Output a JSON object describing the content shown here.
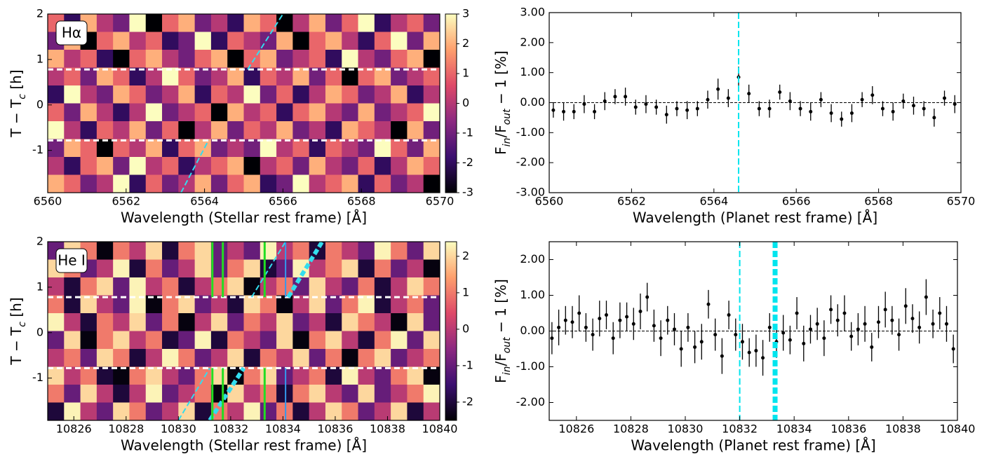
{
  "chart_data": [
    {
      "type": "heatmap",
      "label": "Hα",
      "xlabel": "Wavelength (Stellar rest frame) [Å]",
      "ylabel": [
        "T − T",
        "c",
        " [h]"
      ],
      "xlim": [
        6560,
        6570
      ],
      "xticks": [
        6560,
        6562,
        6564,
        6566,
        6568,
        6570
      ],
      "ylim": [
        -1.93,
        2
      ],
      "yticks": [
        -1,
        0,
        1,
        2
      ],
      "zlim": [
        -3,
        3
      ],
      "zticks": [
        -3,
        -2,
        -1,
        0,
        1,
        2,
        3
      ],
      "colormap": [
        "#000004",
        "#3b0f70",
        "#8c2981",
        "#de4968",
        "#fe9f6d",
        "#fcfdbf"
      ],
      "z": [
        [
          1,
          -2,
          2,
          0,
          -1,
          3,
          -3,
          1,
          2,
          -1,
          0,
          -2,
          2,
          1,
          -3,
          0,
          2,
          -1,
          1,
          3,
          -2,
          0,
          1,
          -1
        ],
        [
          -1,
          2,
          -3,
          1,
          2,
          0,
          1,
          -2,
          -1,
          3,
          -2,
          1,
          0,
          -1,
          2,
          -3,
          1,
          2,
          0,
          -2,
          1,
          3,
          -1,
          2
        ],
        [
          2,
          0,
          1,
          -2,
          -3,
          1,
          2,
          0,
          -1,
          1,
          2,
          -3,
          1,
          2,
          -1,
          0,
          1,
          -2,
          3,
          0,
          -1,
          1,
          2,
          -3
        ],
        [
          0,
          1,
          -1,
          2,
          1,
          -2,
          0,
          3,
          1,
          -1,
          0,
          2,
          -2,
          1,
          0,
          2,
          -1,
          1,
          -3,
          1,
          2,
          -1,
          0,
          1
        ],
        [
          -2,
          3,
          0,
          -1,
          2,
          1,
          -1,
          0,
          2,
          -2,
          1,
          0,
          3,
          -1,
          1,
          -2,
          0,
          2,
          1,
          -1,
          0,
          2,
          -2,
          0
        ],
        [
          1,
          -1,
          2,
          0,
          -2,
          0,
          3,
          -1,
          0,
          1,
          -3,
          2,
          0,
          1,
          -2,
          1,
          2,
          0,
          -1,
          2,
          -1,
          0,
          1,
          3
        ],
        [
          3,
          0,
          -2,
          1,
          0,
          2,
          -1,
          1,
          -3,
          0,
          2,
          -1,
          1,
          0,
          2,
          -1,
          0,
          -2,
          2,
          1,
          0,
          -3,
          2,
          -1
        ],
        [
          -1,
          2,
          1,
          -3,
          1,
          0,
          2,
          -2,
          1,
          2,
          -1,
          0,
          -1,
          3,
          0,
          1,
          -2,
          1,
          0,
          -1,
          3,
          1,
          -1,
          2
        ],
        [
          0,
          -2,
          1,
          2,
          -1,
          3,
          0,
          1,
          -2,
          0,
          1,
          2,
          -3,
          0,
          1,
          -1,
          2,
          0,
          -1,
          1,
          -2,
          0,
          2,
          1
        ],
        [
          2,
          1,
          -1,
          0,
          3,
          -2,
          1,
          -1,
          0,
          2,
          -1,
          1,
          2,
          -2,
          -1,
          3,
          0,
          1,
          2,
          -2,
          1,
          -1,
          0,
          -3
        ]
      ],
      "hlines": {
        "y": [
          0.78,
          -0.78
        ],
        "color": "#ffffff"
      },
      "tracks": [
        {
          "x": [
            6563.4,
            6564.1
          ],
          "y": [
            -1.93,
            -0.78
          ],
          "color": "#33ddee",
          "width": 2
        },
        {
          "x": [
            6565.1,
            6566.0
          ],
          "y": [
            0.78,
            2
          ],
          "color": "#33ddee",
          "width": 2
        }
      ]
    },
    {
      "type": "errorbar",
      "xlabel": "Wavelength (Planet rest frame) [Å]",
      "ylabel": [
        "F",
        "in",
        "/F",
        "out",
        " − 1 [%]"
      ],
      "xlim": [
        6560,
        6570
      ],
      "xticks": [
        6560,
        6562,
        6564,
        6566,
        6568,
        6570
      ],
      "ylim": [
        -3,
        3
      ],
      "yticks": [
        {
          "value": -3,
          "label": "-3.00"
        },
        {
          "value": -2,
          "label": "-2.00"
        },
        {
          "value": -1,
          "label": "-1.00"
        },
        {
          "value": 0,
          "label": "0.00"
        },
        {
          "value": 1,
          "label": "1.00"
        },
        {
          "value": 2,
          "label": "2.00"
        },
        {
          "value": 3,
          "label": "3.00"
        }
      ],
      "hlines": [
        0
      ],
      "vlines": [
        {
          "x": 6564.6,
          "color": "#00e5ee",
          "width": 2
        }
      ],
      "series": [
        {
          "color": "#000000",
          "x": [
            6560.1,
            6560.35,
            6560.6,
            6560.85,
            6561.1,
            6561.35,
            6561.6,
            6561.85,
            6562.1,
            6562.35,
            6562.6,
            6562.85,
            6563.1,
            6563.35,
            6563.6,
            6563.85,
            6564.1,
            6564.35,
            6564.6,
            6564.85,
            6565.1,
            6565.35,
            6565.6,
            6565.85,
            6566.1,
            6566.35,
            6566.6,
            6566.85,
            6567.1,
            6567.35,
            6567.6,
            6567.85,
            6568.1,
            6568.35,
            6568.6,
            6568.85,
            6569.1,
            6569.35,
            6569.6,
            6569.85
          ],
          "values": [
            -0.25,
            -0.3,
            -0.3,
            -0.05,
            -0.3,
            0.05,
            0.2,
            0.2,
            -0.15,
            -0.05,
            -0.15,
            -0.4,
            -0.2,
            -0.25,
            -0.2,
            0.1,
            0.45,
            0.15,
            0.85,
            0.3,
            -0.2,
            -0.2,
            0.35,
            0.05,
            -0.2,
            -0.3,
            0.1,
            -0.35,
            -0.55,
            -0.35,
            0.1,
            0.25,
            -0.2,
            -0.3,
            0.05,
            -0.1,
            -0.2,
            -0.5,
            0.15,
            -0.05
          ],
          "errors": [
            0.25,
            0.3,
            0.25,
            0.3,
            0.25,
            0.3,
            0.25,
            0.3,
            0.25,
            0.3,
            0.25,
            0.3,
            0.25,
            0.3,
            0.25,
            0.3,
            0.35,
            0.3,
            0.35,
            0.3,
            0.25,
            0.3,
            0.25,
            0.3,
            0.25,
            0.3,
            0.25,
            0.3,
            0.25,
            0.3,
            0.25,
            0.3,
            0.25,
            0.3,
            0.25,
            0.3,
            0.25,
            0.3,
            0.25,
            0.3
          ]
        }
      ]
    },
    {
      "type": "heatmap",
      "label": "He I",
      "xlabel": "Wavelength (Stellar rest frame) [Å]",
      "ylabel": [
        "T − T",
        "c",
        " [h]"
      ],
      "xlim": [
        10825,
        10840
      ],
      "xticks": [
        10826,
        10828,
        10830,
        10832,
        10834,
        10836,
        10838,
        10840
      ],
      "ylim": [
        -1.93,
        2
      ],
      "yticks": [
        -1,
        0,
        1,
        2
      ],
      "zlim": [
        -2.5,
        2.4
      ],
      "zticks": [
        -2,
        -1,
        0,
        1,
        2
      ],
      "colormap": [
        "#000004",
        "#3b0f70",
        "#8c2981",
        "#de4968",
        "#fe9f6d",
        "#fcfdbf"
      ],
      "z": [
        [
          -1,
          2,
          1,
          -2.4,
          1,
          0,
          2,
          -2,
          1,
          2,
          -1,
          0,
          -1,
          2.3,
          0,
          1,
          -2,
          1,
          0,
          -1,
          2.3,
          1,
          -1,
          2
        ],
        [
          2,
          1,
          -1,
          0,
          2.3,
          -2,
          1,
          -1,
          0,
          2,
          -1,
          1,
          2,
          -2,
          -1,
          2.3,
          0,
          1,
          2,
          -2,
          1,
          -1,
          0,
          -2.4
        ],
        [
          0,
          -2,
          1,
          2,
          -1,
          2.3,
          0,
          1,
          -2,
          0,
          1,
          2,
          -2.4,
          0,
          1,
          -1,
          2,
          0,
          -1,
          1,
          -2,
          0,
          2,
          1
        ],
        [
          1,
          -2,
          2,
          0,
          -1,
          2.3,
          -2.4,
          1,
          2,
          -1,
          0,
          -2,
          2,
          1,
          -2.4,
          0,
          2,
          -1,
          1,
          2.3,
          -2,
          0,
          1,
          -1
        ],
        [
          2.3,
          0,
          -2,
          1,
          0,
          2,
          -1,
          1,
          -2.4,
          0,
          2,
          -1,
          1,
          0,
          2,
          -1,
          0,
          -2,
          2,
          1,
          0,
          -2.4,
          2,
          -1
        ],
        [
          -1,
          2,
          -2.4,
          1,
          2,
          0,
          1,
          -2,
          -1,
          2.3,
          -2,
          1,
          0,
          -1,
          2,
          -2.4,
          1,
          2,
          0,
          -2,
          1,
          2.3,
          -1,
          2
        ],
        [
          0,
          1,
          -1,
          2,
          1,
          -2,
          0,
          2.3,
          1,
          -1,
          0,
          2,
          -2,
          1,
          0,
          2,
          -1,
          1,
          -2.4,
          1,
          2,
          -1,
          0,
          1
        ],
        [
          2,
          0,
          1,
          -2,
          -2.4,
          1,
          2,
          0,
          -1,
          1,
          2,
          -2.4,
          1,
          2,
          -1,
          0,
          1,
          -2,
          2.3,
          0,
          -1,
          1,
          2,
          -2.4
        ],
        [
          1,
          -1,
          2,
          0,
          -2,
          0,
          2.3,
          -1,
          0,
          1,
          -2.4,
          2,
          0,
          1,
          -2,
          1,
          2,
          0,
          -1,
          2,
          -1,
          0,
          1,
          2.3
        ],
        [
          -2,
          2.3,
          0,
          -1,
          2,
          1,
          -1,
          0,
          2,
          -2,
          1,
          0,
          2.3,
          -1,
          1,
          -2,
          0,
          2,
          1,
          -1,
          0,
          2,
          -2,
          0
        ]
      ],
      "hlines": {
        "y": [
          0.78,
          -0.78
        ],
        "color": "#ffffff"
      },
      "tracks": [
        {
          "x": [
            10830.0,
            10831.2
          ],
          "y": [
            -1.93,
            -0.78
          ],
          "color": "#33ddee",
          "width": 2
        },
        {
          "x": [
            10832.8,
            10834.1
          ],
          "y": [
            0.78,
            2
          ],
          "color": "#33ddee",
          "width": 2
        },
        {
          "x": [
            10831.2,
            10832.5
          ],
          "y": [
            -1.93,
            -0.78
          ],
          "color": "#33ddee",
          "width": 6
        },
        {
          "x": [
            10834.2,
            10835.5
          ],
          "y": [
            0.78,
            2
          ],
          "color": "#33ddee",
          "width": 6
        },
        {
          "x": [
            10831.3,
            10831.3
          ],
          "y": [
            -1.93,
            -0.78
          ],
          "color": "#22dd22",
          "width": 3
        },
        {
          "x": [
            10831.3,
            10831.3
          ],
          "y": [
            0.78,
            2
          ],
          "color": "#22dd22",
          "width": 3
        },
        {
          "x": [
            10831.7,
            10831.7
          ],
          "y": [
            -1.93,
            -0.78
          ],
          "color": "#22dd22",
          "width": 3
        },
        {
          "x": [
            10831.7,
            10831.7
          ],
          "y": [
            0.78,
            2
          ],
          "color": "#22dd22",
          "width": 3
        },
        {
          "x": [
            10833.3,
            10833.3
          ],
          "y": [
            -1.93,
            -0.78
          ],
          "color": "#22dd22",
          "width": 3
        },
        {
          "x": [
            10833.3,
            10833.3
          ],
          "y": [
            0.78,
            2
          ],
          "color": "#22dd22",
          "width": 3
        },
        {
          "x": [
            10834.1,
            10834.1
          ],
          "y": [
            -1.93,
            -0.78
          ],
          "color": "#3399ee",
          "width": 2
        },
        {
          "x": [
            10834.1,
            10834.1
          ],
          "y": [
            0.78,
            2
          ],
          "color": "#3399ee",
          "width": 2
        }
      ]
    },
    {
      "type": "errorbar",
      "xlabel": "Wavelength (Planet rest frame) [Å]",
      "ylabel": [
        "F",
        "in",
        "/F",
        "out",
        " − 1 [%]"
      ],
      "xlim": [
        10825,
        10840
      ],
      "xticks": [
        10826,
        10828,
        10830,
        10832,
        10834,
        10836,
        10838,
        10840
      ],
      "ylim": [
        -2.5,
        2.5
      ],
      "yticks": [
        {
          "value": -2,
          "label": "-2.00"
        },
        {
          "value": -1,
          "label": "-1.00"
        },
        {
          "value": 0,
          "label": "0.00"
        },
        {
          "value": 1,
          "label": "1.00"
        },
        {
          "value": 2,
          "label": "2.00"
        }
      ],
      "hlines": [
        0
      ],
      "vlines": [
        {
          "x": 10832.0,
          "color": "#00e5ee",
          "width": 2
        },
        {
          "x": 10833.3,
          "color": "#00e5ee",
          "width": 7
        }
      ],
      "series": [
        {
          "color": "#000000",
          "x": [
            10825.1,
            10825.35,
            10825.6,
            10825.85,
            10826.1,
            10826.35,
            10826.6,
            10826.85,
            10827.1,
            10827.35,
            10827.6,
            10827.85,
            10828.1,
            10828.35,
            10828.6,
            10828.85,
            10829.1,
            10829.35,
            10829.6,
            10829.85,
            10830.1,
            10830.35,
            10830.6,
            10830.85,
            10831.1,
            10831.35,
            10831.6,
            10831.85,
            10832.1,
            10832.35,
            10832.6,
            10832.85,
            10833.1,
            10833.35,
            10833.6,
            10833.85,
            10834.1,
            10834.35,
            10834.6,
            10834.85,
            10835.1,
            10835.35,
            10835.6,
            10835.85,
            10836.1,
            10836.35,
            10836.6,
            10836.85,
            10837.1,
            10837.35,
            10837.6,
            10837.85,
            10838.1,
            10838.35,
            10838.6,
            10838.85,
            10839.1,
            10839.35,
            10839.6,
            10839.85
          ],
          "values": [
            -0.2,
            0.1,
            0.3,
            0.25,
            0.5,
            0.1,
            -0.1,
            0.35,
            0.45,
            -0.2,
            0.3,
            0.4,
            0.2,
            0.55,
            0.95,
            0.15,
            -0.2,
            0.3,
            0.05,
            -0.5,
            0.1,
            -0.45,
            -0.3,
            0.75,
            -0.1,
            -0.7,
            0.45,
            -0.1,
            -0.3,
            -0.6,
            -0.55,
            -0.75,
            0.1,
            -0.3,
            -0.05,
            -0.25,
            0.5,
            -0.35,
            0.05,
            0.2,
            -0.2,
            0.6,
            0.3,
            0.5,
            -0.15,
            0.05,
            0.2,
            -0.45,
            0.25,
            0.6,
            0.3,
            -0.1,
            0.7,
            0.35,
            0.1,
            0.95,
            0.2,
            0.5,
            0.2,
            -0.5
          ],
          "errors": [
            0.45,
            0.5,
            0.4,
            0.45,
            0.5,
            0.4,
            0.45,
            0.5,
            0.4,
            0.45,
            0.5,
            0.4,
            0.45,
            0.5,
            0.4,
            0.45,
            0.5,
            0.4,
            0.45,
            0.5,
            0.4,
            0.45,
            0.5,
            0.4,
            0.45,
            0.5,
            0.4,
            0.45,
            0.5,
            0.4,
            0.45,
            0.5,
            0.4,
            0.45,
            0.5,
            0.4,
            0.45,
            0.5,
            0.4,
            0.45,
            0.5,
            0.4,
            0.45,
            0.5,
            0.4,
            0.45,
            0.5,
            0.4,
            0.45,
            0.5,
            0.4,
            0.45,
            0.5,
            0.4,
            0.45,
            0.5,
            0.4,
            0.45,
            0.5,
            0.4
          ]
        }
      ]
    }
  ]
}
